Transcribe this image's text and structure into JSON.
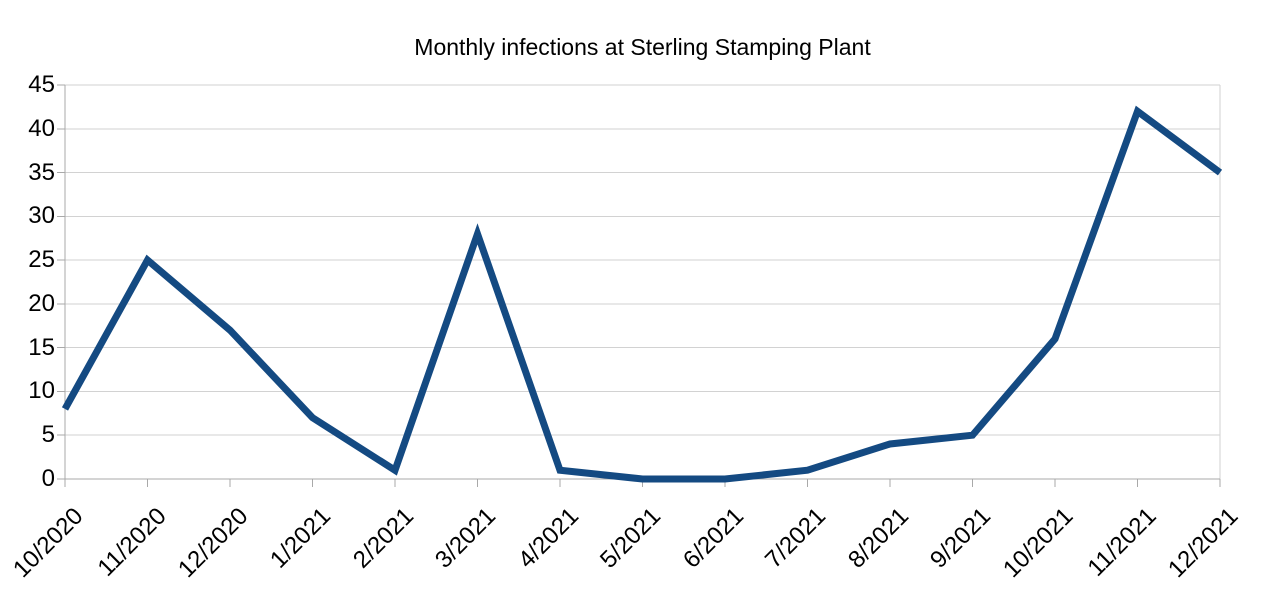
{
  "chart_data": {
    "type": "line",
    "title": "Monthly infections at Sterling Stamping Plant",
    "categories": [
      "10/2020",
      "11/2020",
      "12/2020",
      "1/2021",
      "2/2021",
      "3/2021",
      "4/2021",
      "5/2021",
      "6/2021",
      "7/2021",
      "8/2021",
      "9/2021",
      "10/2021",
      "11/2021",
      "12/2021"
    ],
    "values": [
      8,
      25,
      17,
      7,
      1,
      28,
      1,
      0,
      0,
      1,
      4,
      5,
      16,
      42,
      35
    ],
    "xlabel": "",
    "ylabel": "",
    "ylim": [
      0,
      45
    ],
    "ytick_step": 5,
    "ytick_labels": [
      "0",
      "5",
      "10",
      "15",
      "20",
      "25",
      "30",
      "35",
      "40",
      "45"
    ],
    "grid": "horizontal",
    "legend": "none",
    "colors": {
      "line": "#144a82",
      "grid": "#d2d2d2",
      "axis": "#a9a9a9",
      "text": "#000000",
      "background": "#ffffff"
    }
  }
}
